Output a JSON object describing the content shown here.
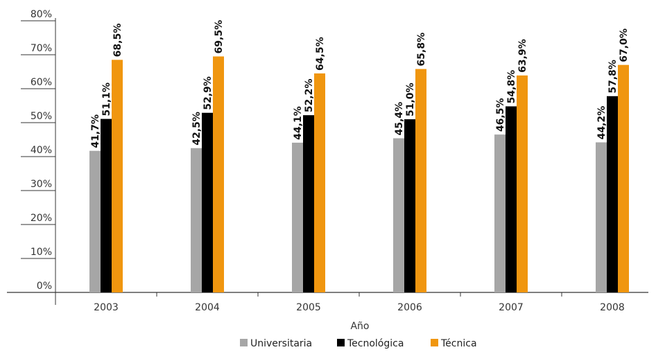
{
  "chart_data": {
    "type": "bar",
    "title": "",
    "xlabel": "Año",
    "ylabel": "",
    "ylim": [
      0,
      80
    ],
    "yticks": [
      "0%",
      "10%",
      "20%",
      "30%",
      "40%",
      "50%",
      "60%",
      "70%",
      "80%"
    ],
    "grid": false,
    "legend_position": "bottom",
    "categories": [
      "2003",
      "2004",
      "2005",
      "2006",
      "2007",
      "2008"
    ],
    "series": [
      {
        "name": "Universitaria",
        "color": "#a6a6a6",
        "values": [
          41.7,
          42.5,
          44.1,
          45.4,
          46.5,
          44.2
        ],
        "labels": [
          "41,7%",
          "42,5%",
          "44,1%",
          "45,4%",
          "46,5%",
          "44,2%"
        ]
      },
      {
        "name": "Tecnológica",
        "color": "#000000",
        "values": [
          51.1,
          52.9,
          52.2,
          51.0,
          54.8,
          57.8
        ],
        "labels": [
          "51,1%",
          "52,9%",
          "52,2%",
          "51,0%",
          "54,8%",
          "57,8%"
        ]
      },
      {
        "name": "Técnica",
        "color": "#f0960f",
        "values": [
          68.5,
          69.5,
          64.5,
          65.8,
          63.9,
          67.0
        ],
        "labels": [
          "68,5%",
          "69,5%",
          "64,5%",
          "65,8%",
          "63,9%",
          "67,0%"
        ]
      }
    ]
  }
}
